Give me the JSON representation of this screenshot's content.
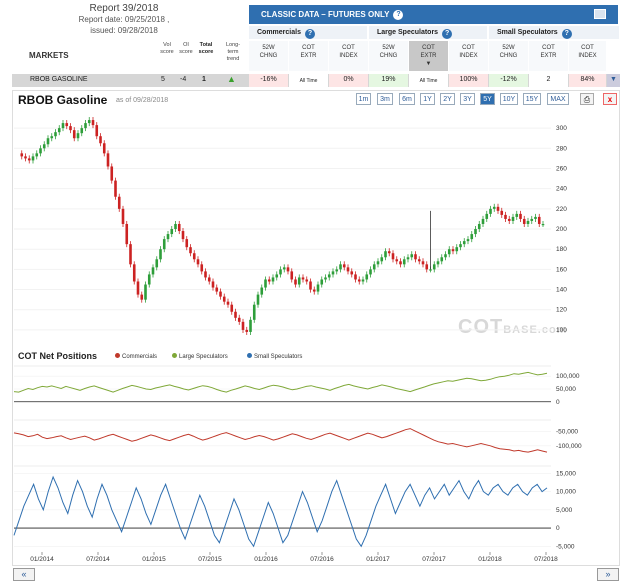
{
  "report": {
    "title": "Report 39/2018",
    "report_date": "Report date: 09/25/2018 ,",
    "issued": "issued: 09/28/2018"
  },
  "markets_label": "MARKETS",
  "columns": {
    "vol": [
      "Vol",
      "score"
    ],
    "oi": [
      "OI",
      "score"
    ],
    "total": [
      "Total",
      "score"
    ],
    "trend": [
      "Long-",
      "term",
      "trend"
    ]
  },
  "classic_bar": {
    "label": "CLASSIC DATA – FUTURES ONLY",
    "help": "?"
  },
  "groups": [
    {
      "label": "Commercials",
      "help": "?"
    },
    {
      "label": "Large Speculators",
      "help": "?"
    },
    {
      "label": "Small Speculators",
      "help": "?"
    }
  ],
  "subheaders": [
    [
      "52W",
      "CHNG"
    ],
    [
      "COT",
      "EXTR"
    ],
    [
      "COT",
      "INDEX"
    ],
    [
      "52W",
      "CHNG"
    ],
    [
      "COT",
      "EXTR"
    ],
    [
      "COT",
      "INDEX"
    ],
    [
      "52W",
      "CHNG"
    ],
    [
      "COT",
      "EXTR"
    ],
    [
      "COT",
      "INDEX"
    ]
  ],
  "market_row": {
    "name": "RBOB GASOLINE",
    "vol": "5",
    "oi": "-4",
    "total": "1",
    "trend": "up",
    "cells": [
      "-16%",
      "All Time",
      "0%",
      "19%",
      "All Time",
      "100%",
      "-12%",
      "2",
      "84%"
    ]
  },
  "chart_header": {
    "title": "RBOB Gasoline",
    "asof": "as of 09/28/2018",
    "ranges": [
      "1m",
      "3m",
      "6m",
      "1Y",
      "2Y",
      "3Y",
      "5Y",
      "10Y",
      "15Y",
      "MAX"
    ],
    "active_range": "5Y",
    "print_icon": "printer-icon",
    "close": "x"
  },
  "watermark": {
    "main": "COT",
    "sub": "BASE.com"
  },
  "cot_section": {
    "title": "COT Net Positions",
    "legend": [
      {
        "name": "Commercials",
        "color": "#c0392b"
      },
      {
        "name": "Large Speculators",
        "color": "#7fa838"
      },
      {
        "name": "Small Speculators",
        "color": "#2f6fb0"
      }
    ]
  },
  "nav": {
    "prev": "«",
    "next": "»"
  },
  "chart_data": [
    {
      "type": "candlestick",
      "title": "RBOB Gasoline",
      "ylim": [
        90,
        315
      ],
      "yticks": [
        100,
        120,
        140,
        160,
        180,
        200,
        220,
        240,
        260,
        280,
        300
      ],
      "x": [
        "01/2014",
        "07/2014",
        "01/2015",
        "07/2015",
        "01/2016",
        "07/2016",
        "01/2017",
        "07/2017",
        "01/2018",
        "07/2018"
      ],
      "close_path": [
        275,
        272,
        270,
        268,
        272,
        275,
        280,
        284,
        290,
        292,
        296,
        300,
        305,
        302,
        298,
        290,
        295,
        300,
        305,
        308,
        303,
        292,
        285,
        275,
        262,
        248,
        232,
        220,
        205,
        185,
        165,
        148,
        135,
        130,
        145,
        155,
        162,
        170,
        180,
        190,
        195,
        200,
        205,
        198,
        190,
        182,
        176,
        170,
        165,
        158,
        152,
        148,
        142,
        138,
        133,
        128,
        125,
        118,
        112,
        108,
        100,
        98,
        110,
        125,
        135,
        142,
        150,
        148,
        152,
        155,
        160,
        162,
        158,
        150,
        145,
        152,
        150,
        148,
        140,
        138,
        145,
        150,
        152,
        155,
        158,
        160,
        165,
        162,
        158,
        155,
        150,
        148,
        150,
        155,
        160,
        165,
        168,
        172,
        178,
        176,
        170,
        168,
        165,
        170,
        172,
        175,
        170,
        168,
        165,
        160,
        160,
        165,
        168,
        172,
        175,
        180,
        178,
        182,
        185,
        188,
        190,
        195,
        200,
        205,
        210,
        215,
        220,
        222,
        218,
        214,
        210,
        208,
        212,
        215,
        210,
        205,
        208,
        210,
        212,
        205,
        205
      ],
      "spike": {
        "x_index": 110,
        "high": 218
      }
    },
    {
      "type": "line",
      "name": "Large Speculators",
      "ylim": [
        -40000,
        140000
      ],
      "yticks": [
        0,
        50000,
        100000
      ],
      "values": [
        40000,
        38000,
        45000,
        52000,
        48000,
        55000,
        60000,
        58000,
        62000,
        57000,
        52000,
        60000,
        55000,
        50000,
        45000,
        52000,
        58000,
        62000,
        56000,
        50000,
        44000,
        38000,
        45000,
        52000,
        58000,
        64000,
        60000,
        55000,
        50000,
        48000,
        54000,
        58000,
        62000,
        66000,
        60000,
        56000,
        50000,
        46000,
        52000,
        58000,
        63000,
        60000,
        55000,
        48000,
        42000,
        38000,
        45000,
        50000,
        56000,
        62000,
        58000,
        52000,
        48000,
        54000,
        60000,
        65000,
        62000,
        58000,
        52000,
        47000,
        50000,
        55000,
        60000,
        63000,
        58000,
        54000,
        50000,
        45000,
        52000,
        58000,
        64000,
        68000,
        62000,
        58000,
        54000,
        50000,
        56000,
        60000,
        66000,
        62000,
        58000,
        52000,
        48000,
        44000,
        40000,
        46000,
        52000,
        58000,
        64000,
        70000,
        74000,
        78000,
        82000,
        80000,
        84000,
        88000,
        92000,
        90000,
        86000,
        82000,
        84000,
        88000,
        94000,
        98000,
        100000,
        104000,
        110000,
        108000,
        112000,
        115000,
        110000,
        105000,
        108000,
        112000
      ]
    },
    {
      "type": "line",
      "name": "Commercials",
      "ylim": [
        -160000,
        -10000
      ],
      "yticks": [
        -100000,
        -50000
      ],
      "values": [
        -55000,
        -58000,
        -62000,
        -68000,
        -65000,
        -60000,
        -70000,
        -75000,
        -72000,
        -68000,
        -65000,
        -72000,
        -78000,
        -74000,
        -70000,
        -66000,
        -72000,
        -80000,
        -76000,
        -70000,
        -64000,
        -60000,
        -66000,
        -72000,
        -78000,
        -84000,
        -80000,
        -74000,
        -68000,
        -62000,
        -66000,
        -72000,
        -78000,
        -82000,
        -76000,
        -70000,
        -64000,
        -60000,
        -66000,
        -74000,
        -80000,
        -76000,
        -70000,
        -64000,
        -58000,
        -54000,
        -60000,
        -66000,
        -72000,
        -78000,
        -74000,
        -68000,
        -64000,
        -68000,
        -74000,
        -80000,
        -76000,
        -70000,
        -64000,
        -58000,
        -62000,
        -68000,
        -74000,
        -78000,
        -72000,
        -66000,
        -60000,
        -56000,
        -62000,
        -68000,
        -74000,
        -80000,
        -74000,
        -68000,
        -62000,
        -56000,
        -60000,
        -66000,
        -72000,
        -68000,
        -62000,
        -56000,
        -50000,
        -44000,
        -40000,
        -48000,
        -56000,
        -64000,
        -72000,
        -80000,
        -86000,
        -90000,
        -94000,
        -92000,
        -96000,
        -100000,
        -104000,
        -100000,
        -96000,
        -92000,
        -96000,
        -100000,
        -106000,
        -110000,
        -112000,
        -114000,
        -118000,
        -116000,
        -120000,
        -122000,
        -118000,
        -114000,
        -118000,
        -122000
      ]
    },
    {
      "type": "line",
      "name": "Small Speculators",
      "ylim": [
        -6000,
        17000
      ],
      "yticks": [
        -5000,
        0,
        5000,
        10000,
        15000
      ],
      "values": [
        -2000,
        2000,
        6000,
        9000,
        12000,
        8000,
        5000,
        10000,
        14000,
        11000,
        7000,
        4000,
        9000,
        13000,
        10000,
        6000,
        3000,
        8000,
        12000,
        9000,
        5000,
        2000,
        -1000,
        3000,
        7000,
        11000,
        8000,
        4000,
        1000,
        5000,
        9000,
        12000,
        8000,
        4000,
        0,
        -3000,
        1000,
        5000,
        9000,
        6000,
        2000,
        -2000,
        -4000,
        0,
        4000,
        8000,
        5000,
        1000,
        -3000,
        -5000,
        -1000,
        3000,
        7000,
        4000,
        0,
        -4000,
        -2000,
        2000,
        6000,
        10000,
        7000,
        3000,
        -1000,
        2000,
        6000,
        10000,
        13000,
        9000,
        5000,
        1000,
        -3000,
        -5000,
        -2000,
        2000,
        6000,
        9000,
        12000,
        8000,
        4000,
        7000,
        10000,
        12000,
        9000,
        6000,
        9000,
        11000,
        8000,
        10000,
        12000,
        9000,
        11000,
        13000,
        10000,
        8000,
        11000,
        13000,
        10000,
        9000,
        11000,
        12000,
        10000,
        9000,
        11000,
        12000,
        10000,
        9000,
        11000,
        12000,
        10000,
        11000
      ]
    }
  ]
}
